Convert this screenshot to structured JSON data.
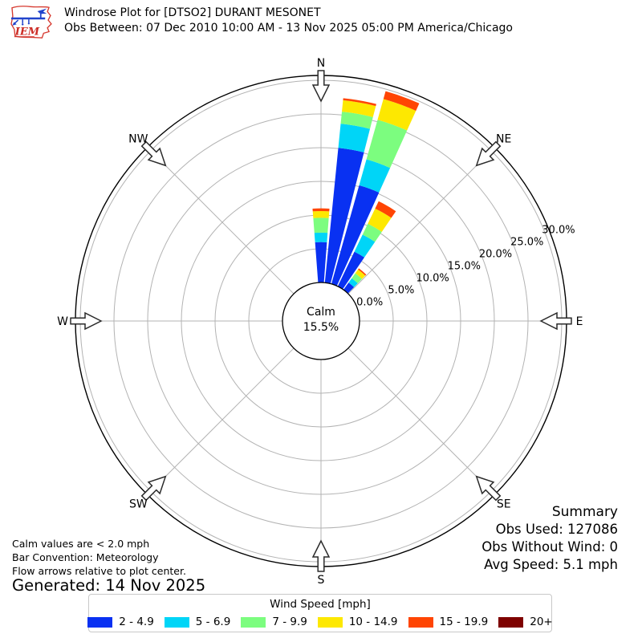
{
  "header": {
    "title": "Windrose Plot for [DTSO2] DURANT MESONET",
    "subtitle": "Obs Between: 07 Dec 2010 10:00 AM - 13 Nov 2025 05:00 PM America/Chicago"
  },
  "logo": {
    "text": "IEM"
  },
  "footnotes": {
    "line1": "Calm values are < 2.0 mph",
    "line2": "Bar Convention: Meteorology",
    "line3": "Flow arrows relative to plot center.",
    "generated": "Generated: 14 Nov 2025"
  },
  "summary": {
    "title": "Summary",
    "obs_used": "Obs Used: 127086",
    "obs_without_wind": "Obs Without Wind: 0",
    "avg_speed": "Avg Speed: 5.1 mph"
  },
  "legend": {
    "title": "Wind Speed [mph]",
    "items": [
      {
        "label": "2 - 4.9",
        "color": "#0931f2"
      },
      {
        "label": "5 - 6.9",
        "color": "#00d5f7"
      },
      {
        "label": "7 - 9.9",
        "color": "#7cfd7f"
      },
      {
        "label": "10 - 14.9",
        "color": "#fde801"
      },
      {
        "label": "15 - 19.9",
        "color": "#ff4503"
      },
      {
        "label": "20+",
        "color": "#7e0100"
      }
    ]
  },
  "chart_data": {
    "type": "windrose-stacked-bar",
    "title": "Windrose Plot for [DTSO2] DURANT MESONET",
    "units": "percent frequency by wind speed bin [mph]",
    "calm": {
      "label": "Calm",
      "value": "15.5%",
      "pct": 15.5
    },
    "rings": [
      {
        "pct": 0,
        "label": "0.0%"
      },
      {
        "pct": 5,
        "label": "5.0%"
      },
      {
        "pct": 10,
        "label": "10.0%"
      },
      {
        "pct": 15,
        "label": "15.0%"
      },
      {
        "pct": 20,
        "label": "20.0%"
      },
      {
        "pct": 25,
        "label": "25.0%"
      },
      {
        "pct": 30,
        "label": "30.0%"
      }
    ],
    "ring_label_azimuth_deg": 69,
    "compass": [
      {
        "label": "N",
        "deg": 0
      },
      {
        "label": "NE",
        "deg": 45
      },
      {
        "label": "E",
        "deg": 90
      },
      {
        "label": "SE",
        "deg": 135
      },
      {
        "label": "S",
        "deg": 180
      },
      {
        "label": "SW",
        "deg": 225
      },
      {
        "label": "W",
        "deg": 270
      },
      {
        "label": "NW",
        "deg": 315
      }
    ],
    "speed_bins": [
      "2 - 4.9",
      "5 - 6.9",
      "7 - 9.9",
      "10 - 14.9",
      "15 - 19.9",
      "20+"
    ],
    "bin_colors": [
      "#0931f2",
      "#00d5f7",
      "#7cfd7f",
      "#fde801",
      "#ff4503",
      "#7e0100"
    ],
    "sector_width_deg": 8.6,
    "sectors": [
      {
        "azimuth_deg": 0,
        "stack_pct": [
          6.0,
          1.4,
          2.2,
          1.0,
          0.4,
          0
        ],
        "total_pct": 11.0
      },
      {
        "azimuth_deg": 10,
        "stack_pct": [
          20.1,
          3.6,
          1.8,
          1.7,
          0.3,
          0
        ],
        "total_pct": 27.5
      },
      {
        "azimuth_deg": 20,
        "stack_pct": [
          15.2,
          4.0,
          6.1,
          3.2,
          1.2,
          0
        ],
        "total_pct": 29.7
      },
      {
        "azimuth_deg": 30,
        "stack_pct": [
          5.7,
          2.8,
          1.8,
          2.5,
          1.2,
          0
        ],
        "total_pct": 14.0
      },
      {
        "azimuth_deg": 40,
        "stack_pct": [
          1.3,
          0.8,
          0.9,
          0.7,
          0.2,
          0
        ],
        "total_pct": 3.9
      }
    ]
  }
}
